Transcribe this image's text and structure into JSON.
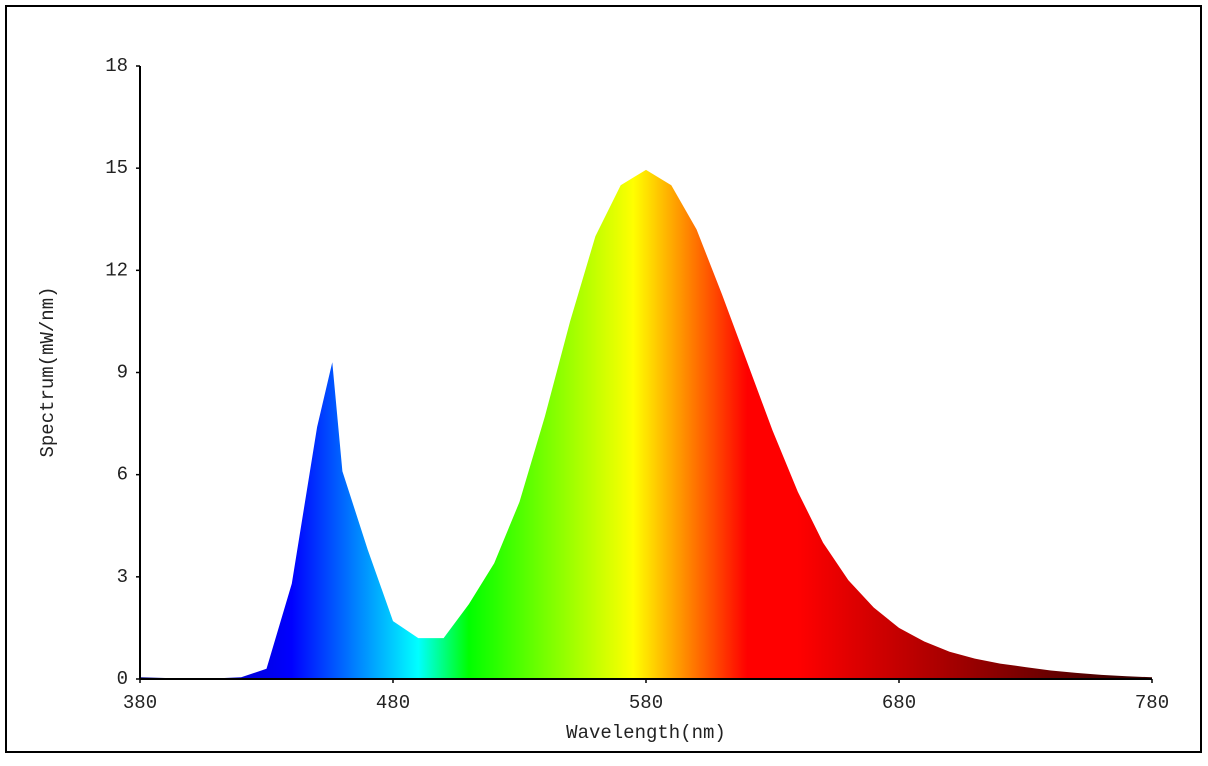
{
  "chart_data": {
    "type": "area",
    "x_label": "Wavelength(nm)",
    "y_label": "Spectrum(mW/nm)",
    "x": [
      380,
      390,
      400,
      410,
      420,
      430,
      440,
      450,
      456,
      460,
      470,
      480,
      490,
      500,
      510,
      520,
      530,
      540,
      550,
      560,
      570,
      580,
      590,
      600,
      610,
      620,
      630,
      640,
      650,
      660,
      670,
      680,
      690,
      700,
      710,
      720,
      730,
      740,
      750,
      760,
      770,
      780
    ],
    "values": [
      0.05,
      0.03,
      0.02,
      0.02,
      0.05,
      0.3,
      2.8,
      7.4,
      9.3,
      6.1,
      3.8,
      1.7,
      1.2,
      1.2,
      2.2,
      3.4,
      5.2,
      7.7,
      10.5,
      13,
      14.5,
      14.95,
      14.5,
      13.2,
      11.3,
      9.3,
      7.3,
      5.5,
      4.0,
      2.9,
      2.1,
      1.5,
      1.1,
      0.8,
      0.6,
      0.45,
      0.35,
      0.25,
      0.18,
      0.12,
      0.08,
      0.05
    ],
    "xlim": [
      380,
      780
    ],
    "xticks": [
      380,
      480,
      580,
      680,
      780
    ],
    "ylim": [
      0,
      18
    ],
    "yticks": [
      0,
      3,
      6,
      9,
      12,
      15,
      18
    ]
  }
}
